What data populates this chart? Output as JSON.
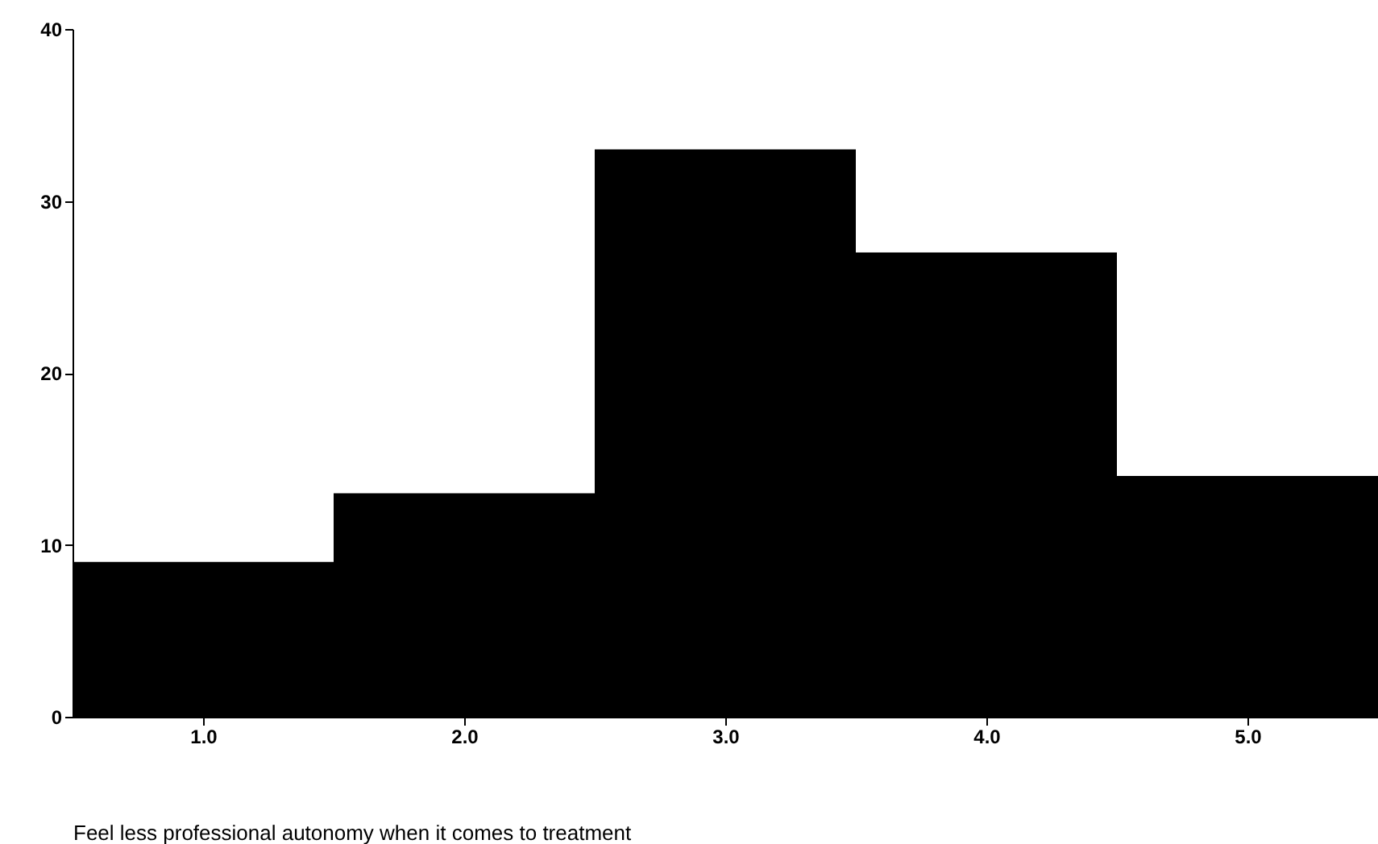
{
  "chart_data": {
    "type": "histogram",
    "xlabel": "Feel less professional autonomy when it comes to treatment",
    "bins": [
      0.5,
      1.5,
      2.5,
      3.5,
      4.5,
      5.5
    ],
    "values": [
      9,
      13,
      33,
      27,
      14
    ],
    "color": "#000000",
    "xlim": [
      0.5,
      5.5
    ],
    "xticks": [
      {
        "value": 1,
        "label": "1.0"
      },
      {
        "value": 2,
        "label": "2.0"
      },
      {
        "value": 3,
        "label": "3.0"
      },
      {
        "value": 4,
        "label": "4.0"
      },
      {
        "value": 5,
        "label": "5.0"
      }
    ],
    "ylim": [
      0,
      40
    ],
    "yticks": [
      0,
      10,
      20,
      30,
      40
    ],
    "grid": false
  }
}
